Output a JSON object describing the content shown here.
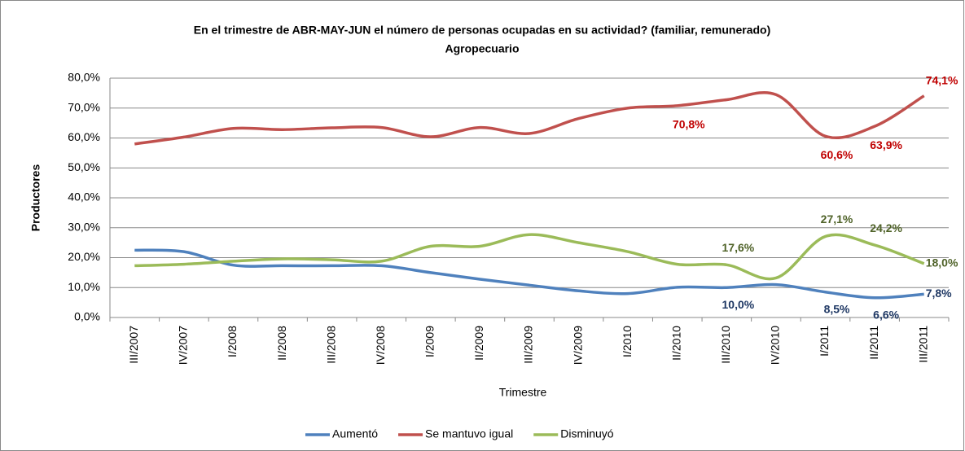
{
  "chart_data": {
    "type": "line",
    "title": "En el trimestre de ABR-MAY-JUN el número de personas ocupadas en su actividad? (familiar, remunerado)",
    "subtitle": "Agropecuario",
    "x_label": "Trimestre",
    "y_label": "Productores",
    "categories": [
      "III/2007",
      "IV/2007",
      "I/2008",
      "II/2008",
      "III/2008",
      "IV/2008",
      "I/2009",
      "II/2009",
      "III/2009",
      "IV/2009",
      "I/2010",
      "II/2010",
      "III/2010",
      "IV/2010",
      "I/2011",
      "II/2011",
      "III/2011"
    ],
    "series": [
      {
        "name": "Aumentó",
        "color": "#4f81bd",
        "label_color": "#1f3864",
        "values": [
          22.5,
          22.0,
          17.5,
          17.3,
          17.3,
          17.3,
          15.0,
          12.8,
          10.8,
          8.9,
          8.0,
          10.1,
          10.0,
          11.0,
          8.5,
          6.6,
          7.8
        ],
        "value_labels": [
          null,
          null,
          null,
          null,
          null,
          null,
          null,
          null,
          null,
          null,
          null,
          null,
          "10,0%",
          null,
          "8,5%",
          "6,6%",
          "7,8%"
        ]
      },
      {
        "name": "Se mantuvo igual",
        "color": "#c0504d",
        "label_color": "#c00000",
        "values": [
          58.0,
          60.3,
          63.2,
          62.8,
          63.4,
          63.5,
          60.4,
          63.5,
          61.5,
          66.5,
          70.0,
          70.8,
          72.8,
          74.5,
          60.6,
          63.9,
          74.1
        ],
        "value_labels": [
          null,
          null,
          null,
          null,
          null,
          null,
          null,
          null,
          null,
          null,
          null,
          "70,8%",
          null,
          null,
          "60,6%",
          "63,9%",
          "74,1%"
        ]
      },
      {
        "name": "Disminuyó",
        "color": "#9bbb59",
        "label_color": "#4f6228",
        "values": [
          17.3,
          17.8,
          18.8,
          19.6,
          19.3,
          18.8,
          23.8,
          23.8,
          27.7,
          25.0,
          22.0,
          17.8,
          17.6,
          13.2,
          27.1,
          24.2,
          18.0
        ],
        "value_labels": [
          null,
          null,
          null,
          null,
          null,
          null,
          null,
          null,
          null,
          null,
          null,
          null,
          "17,6%",
          null,
          "27,1%",
          "24,2%",
          "18,0%"
        ]
      }
    ],
    "ylim": [
      0,
      80
    ],
    "yticks": [
      {
        "value": 0,
        "label": "0,0%"
      },
      {
        "value": 10,
        "label": "10,0%"
      },
      {
        "value": 20,
        "label": "20,0%"
      },
      {
        "value": 30,
        "label": "30,0%"
      },
      {
        "value": 40,
        "label": "40,0%"
      },
      {
        "value": 50,
        "label": "50,0%"
      },
      {
        "value": 60,
        "label": "60,0%"
      },
      {
        "value": 70,
        "label": "70,0%"
      },
      {
        "value": 80,
        "label": "80,0%"
      }
    ],
    "grid": true,
    "legend": "bottom"
  }
}
